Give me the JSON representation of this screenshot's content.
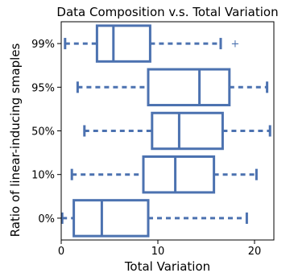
{
  "chart_data": {
    "type": "boxplot",
    "title": "Data Composition v.s. Total Variation",
    "xlabel": "Total Variation",
    "ylabel": "Ratio of linear-inducing smaples",
    "xlim": [
      0,
      22
    ],
    "xticks": [
      0,
      10,
      20
    ],
    "orientation": "horizontal",
    "grid": false,
    "color": "#4c72b0",
    "categories": [
      "0%",
      "10%",
      "50%",
      "95%",
      "99%"
    ],
    "boxes": [
      {
        "label": "0%",
        "whislo": 0.1,
        "q1": 1.3,
        "med": 4.2,
        "q3": 9.0,
        "whishi": 19.2,
        "fliers": []
      },
      {
        "label": "10%",
        "whislo": 1.1,
        "q1": 8.5,
        "med": 11.8,
        "q3": 15.8,
        "whishi": 20.2,
        "fliers": []
      },
      {
        "label": "50%",
        "whislo": 2.4,
        "q1": 9.4,
        "med": 12.2,
        "q3": 16.7,
        "whishi": 21.6,
        "fliers": []
      },
      {
        "label": "95%",
        "whislo": 1.7,
        "q1": 9.0,
        "med": 14.3,
        "q3": 17.4,
        "whishi": 21.3,
        "fliers": []
      },
      {
        "label": "99%",
        "whislo": 0.4,
        "q1": 3.7,
        "med": 5.4,
        "q3": 9.2,
        "whishi": 16.5,
        "fliers": [
          18.0
        ]
      }
    ]
  }
}
